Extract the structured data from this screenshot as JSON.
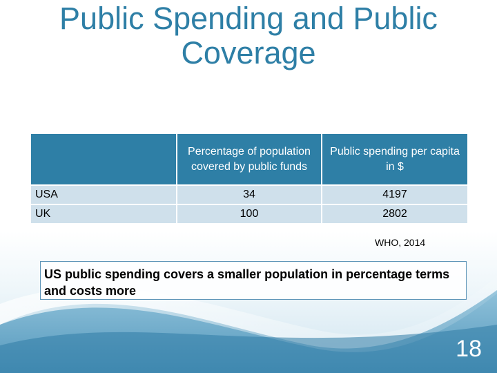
{
  "slide": {
    "title": "Public Spending and Public Coverage",
    "slide_number": "18"
  },
  "table": {
    "headers": [
      "",
      "Percentage of population covered by public funds",
      "Public spending per capita in $"
    ],
    "rows": [
      {
        "label": "USA",
        "coverage": "34",
        "spending": "4197"
      },
      {
        "label": "UK",
        "coverage": "100",
        "spending": "2802"
      }
    ]
  },
  "source": "WHO, 2014",
  "note": "US public spending covers a smaller population in percentage terms and costs more",
  "colors": {
    "accent": "#2E7FA6",
    "table_cell": "#CFE0EB",
    "background_wave": "#4F9CC0"
  }
}
